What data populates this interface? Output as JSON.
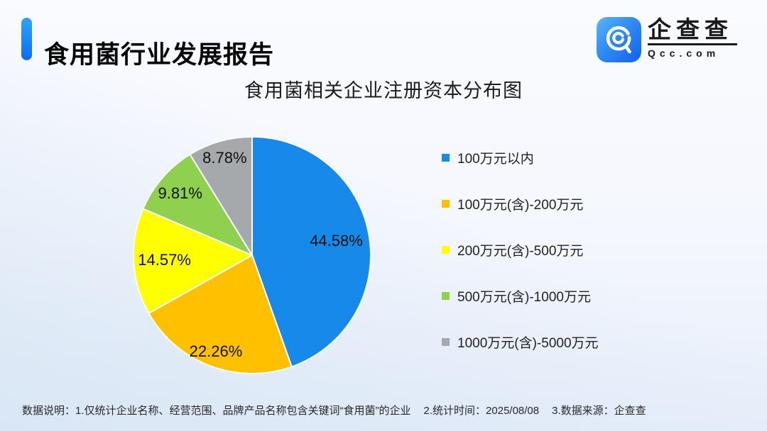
{
  "header": {
    "title": "食用菌行业发展报告",
    "accent_color": "#0b6cf0"
  },
  "logo": {
    "name": "企查查",
    "domain": "Qcc.com",
    "icon_colors": [
      "#5bb6f7",
      "#155fee"
    ]
  },
  "chart_data": {
    "type": "pie",
    "title": "食用菌相关企业注册资本分布图",
    "categories": [
      "100万元以内",
      "100万元(含)-200万元",
      "200万元(含)-500万元",
      "500万元(含)-1000万元",
      "1000万元(含)-5000万元"
    ],
    "values": [
      44.58,
      22.26,
      14.57,
      9.81,
      8.78
    ],
    "labels": [
      "44.58%",
      "22.26%",
      "14.57%",
      "9.81%",
      "8.78%"
    ],
    "colors": [
      "#1789e9",
      "#ffc000",
      "#ffff00",
      "#8fd14f",
      "#a6a9ac"
    ],
    "start_angle_deg": 0,
    "direction": "clockwise",
    "legend_position": "right",
    "label_r": [
      0.72,
      0.87,
      0.74,
      0.8,
      0.85
    ]
  },
  "footer": {
    "label": "数据说明：",
    "items": [
      "1.仅统计企业名称、经营范围、品牌产品名称包含关键词“食用菌”的企业",
      "2.统计时间：2025/08/08",
      "3.数据来源：企查查"
    ]
  }
}
